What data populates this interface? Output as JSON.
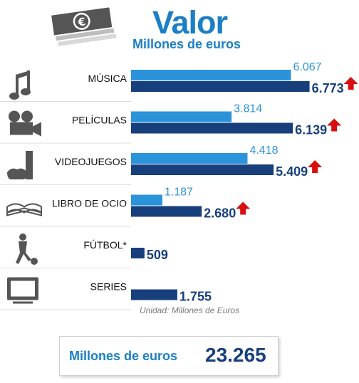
{
  "header": {
    "title": "Valor",
    "subtitle": "Millones de euros",
    "icon": "money-icon"
  },
  "colors": {
    "series_light": "#2b93d9",
    "series_dark": "#173f7c",
    "arrow": "#d90f0f",
    "icon": "#555555"
  },
  "chart_data": {
    "type": "bar",
    "orientation": "horizontal",
    "categories": [
      "MÚSICA",
      "PELÍCULAS",
      "VIDEOJUEGOS",
      "LIBRO DE OCIO",
      "FÚTBOL*",
      "SERIES"
    ],
    "category_icons": [
      "music-note-icon",
      "film-camera-icon",
      "game-console-icon",
      "book-icon",
      "football-player-icon",
      "tv-icon"
    ],
    "series": [
      {
        "values": [
          6.067,
          3.814,
          4.418,
          1.187,
          null,
          null
        ],
        "labels": [
          "6.067",
          "3.814",
          "4.418",
          "1.187",
          "",
          ""
        ]
      },
      {
        "values": [
          6.773,
          6.139,
          5.409,
          2.68,
          0.509,
          1.755
        ],
        "labels": [
          "6.773",
          "6.139",
          "5.409",
          "2.680",
          "509",
          "1.755"
        ]
      }
    ],
    "increase_arrows": [
      true,
      true,
      true,
      true,
      false,
      false
    ],
    "unit_note": "Unidad: Millones de Euros"
  },
  "total": {
    "label": "Millones de euros",
    "value": "23.265"
  }
}
